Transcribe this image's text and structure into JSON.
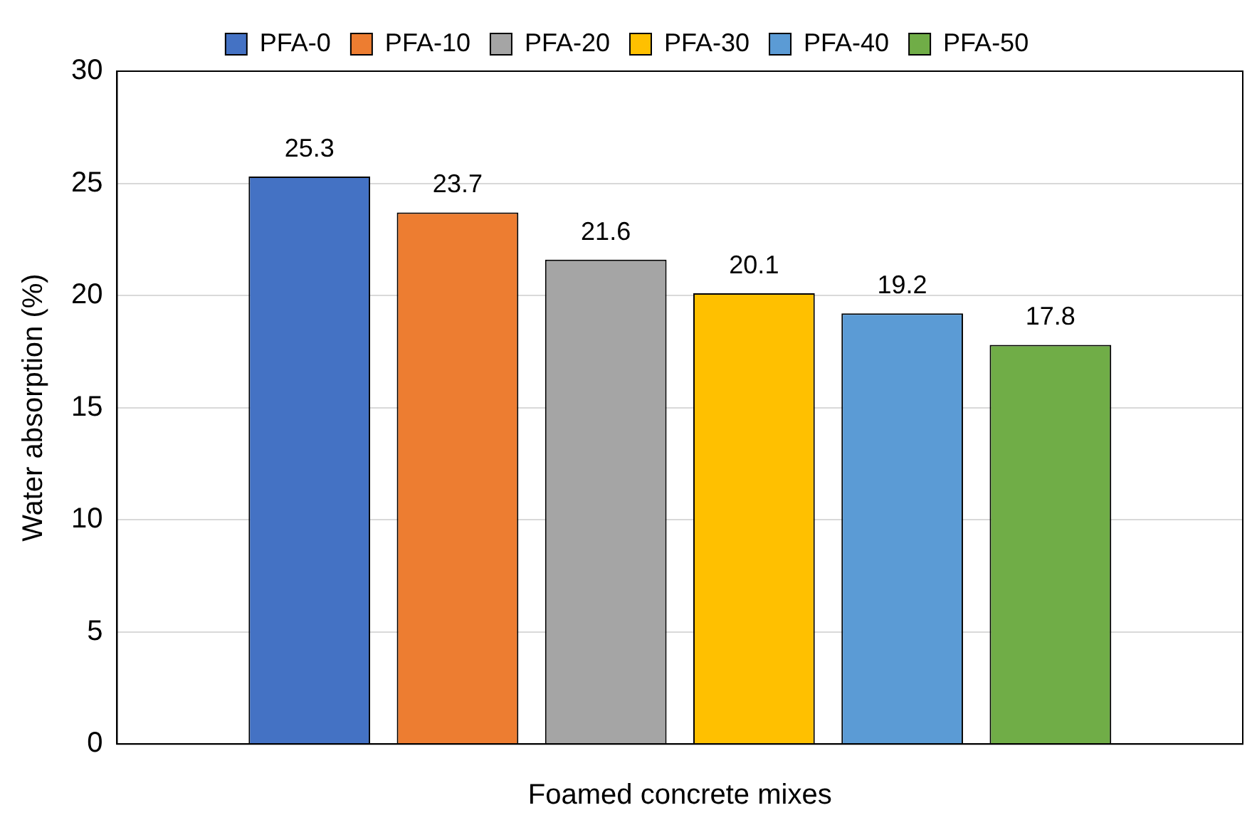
{
  "chart_data": {
    "type": "bar",
    "xlabel": "Foamed concrete mixes",
    "ylabel": "Water absorption (%)",
    "categories": [
      null
    ],
    "series": [
      {
        "name": "PFA-0",
        "color": "#4472c4",
        "values": [
          25.3
        ]
      },
      {
        "name": "PFA-10",
        "color": "#ed7d31",
        "values": [
          23.7
        ]
      },
      {
        "name": "PFA-20",
        "color": "#a5a5a5",
        "values": [
          21.6
        ]
      },
      {
        "name": "PFA-30",
        "color": "#ffc000",
        "values": [
          20.1
        ]
      },
      {
        "name": "PFA-40",
        "color": "#5b9bd5",
        "values": [
          19.2
        ]
      },
      {
        "name": "PFA-50",
        "color": "#70ad47",
        "values": [
          17.8
        ]
      }
    ],
    "ylim": [
      0,
      30
    ],
    "yticks": [
      0,
      5,
      10,
      15,
      20,
      25,
      30
    ],
    "grid": "y",
    "legend": "top",
    "data_labels": true
  }
}
